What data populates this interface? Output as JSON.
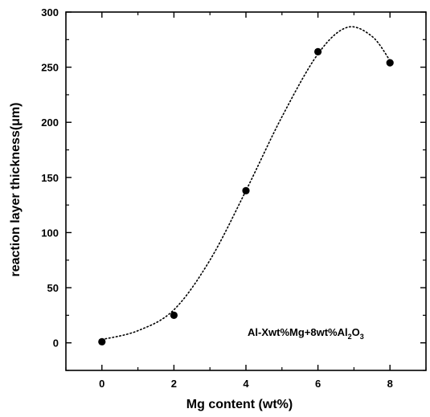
{
  "chart_data": {
    "type": "scatter",
    "title": "",
    "xlabel": "Mg content (wt%)",
    "ylabel": "reaction layer thickness(μm)",
    "xlim": [
      -1,
      9
    ],
    "ylim": [
      -25,
      300
    ],
    "xticks": [
      0,
      2,
      4,
      6,
      8
    ],
    "yticks": [
      0,
      50,
      100,
      150,
      200,
      250,
      300
    ],
    "series": [
      {
        "x": [
          0,
          2,
          4,
          6,
          8
        ],
        "y": [
          1,
          25,
          138,
          264,
          254
        ]
      }
    ],
    "fit_curve": {
      "style": "dotted",
      "x": [
        0,
        1,
        2,
        3,
        4,
        5,
        6,
        6.8,
        7.5,
        8
      ],
      "y": [
        3,
        11,
        30,
        75,
        138,
        205,
        262,
        286,
        278,
        256
      ]
    },
    "annotation": {
      "prefix": "Al-Xwt%Mg+8wt%Al",
      "sub1": "2",
      "mid": "O",
      "sub2": "3"
    },
    "grid": false,
    "colors": {
      "marker": "#000000",
      "curve": "#000000",
      "axes": "#000000"
    }
  }
}
